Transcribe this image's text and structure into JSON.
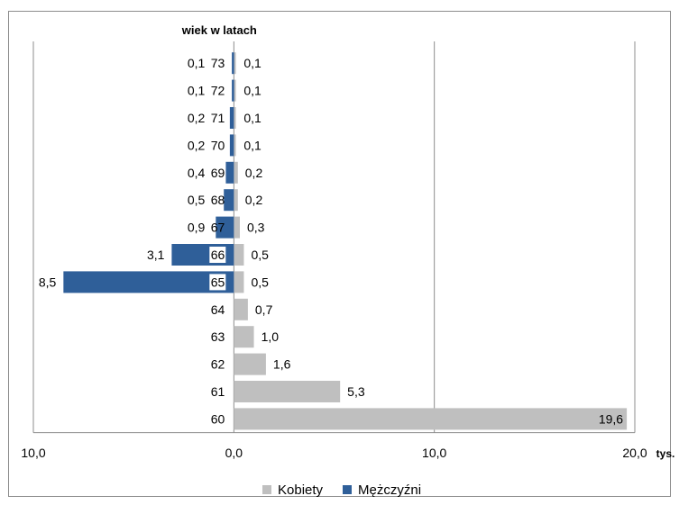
{
  "page": {
    "title": ""
  },
  "chart_data": {
    "type": "bar",
    "orientation": "horizontal",
    "title": "",
    "ylabel": "wiek w latach",
    "xunit": "tys.",
    "categories": [
      "73",
      "72",
      "71",
      "70",
      "69",
      "68",
      "67",
      "66",
      "65",
      "64",
      "63",
      "62",
      "61",
      "60"
    ],
    "series": [
      {
        "name": "Kobiety",
        "color": "#bfbfbf",
        "values": [
          0.1,
          0.1,
          0.1,
          0.1,
          0.2,
          0.2,
          0.3,
          0.5,
          0.5,
          0.7,
          1.0,
          1.6,
          5.3,
          19.6
        ],
        "labels": [
          "0,1",
          "0,1",
          "0,1",
          "0,1",
          "0,2",
          "0,2",
          "0,3",
          "0,5",
          "0,5",
          "0,7",
          "1,0",
          "1,6",
          "5,3",
          "19,6"
        ]
      },
      {
        "name": "Mężczyźni",
        "color": "#2f5f99",
        "values": [
          0.1,
          0.1,
          0.2,
          0.2,
          0.4,
          0.5,
          0.9,
          3.1,
          8.5,
          null,
          null,
          null,
          null,
          null
        ],
        "labels": [
          "0,1",
          "0,1",
          "0,2",
          "0,2",
          "0,4",
          "0,5",
          "0,9",
          "3,1",
          "8,5",
          "",
          "",
          "",
          "",
          ""
        ]
      }
    ],
    "xaxis": {
      "ticks": [
        -10,
        0,
        10,
        20
      ],
      "tick_labels": [
        "10,0",
        "0,0",
        "10,0",
        "20,0"
      ],
      "xlim": [
        -10,
        20
      ]
    },
    "grid": true,
    "legend_position": "bottom"
  },
  "legend": [
    {
      "label": "Kobiety",
      "color": "#bfbfbf"
    },
    {
      "label": "Mężczyźni",
      "color": "#2f5f99"
    }
  ]
}
